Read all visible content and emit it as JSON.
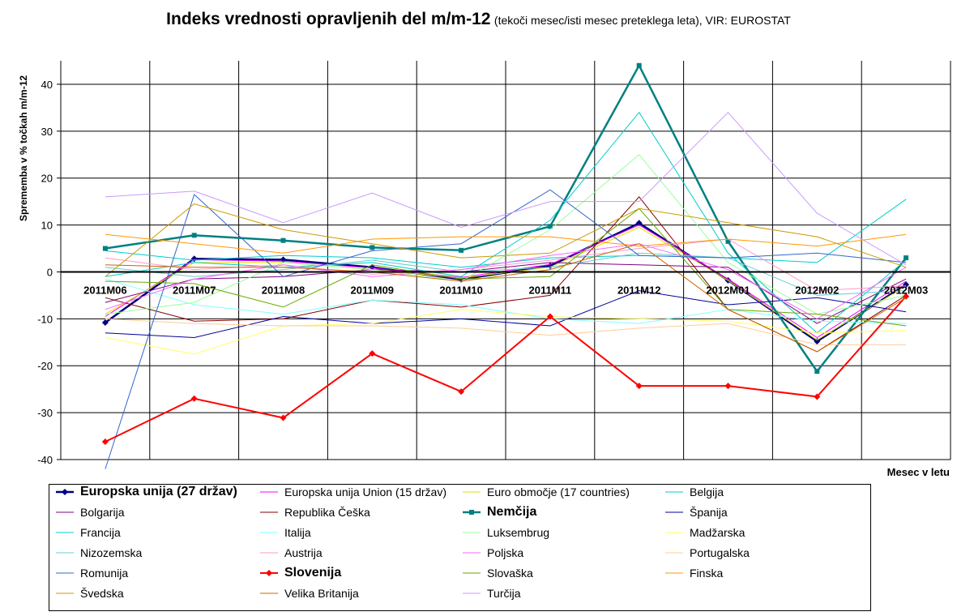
{
  "title": {
    "main": "Indeks vrednosti opravljenih del m/m-12",
    "sub": "(tekoči mesec/isti mesec preteklega leta), VIR: EUROSTAT"
  },
  "chart_data": {
    "type": "line",
    "categories": [
      "2011M06",
      "2011M07",
      "2011M08",
      "2011M09",
      "2011M10",
      "2011M11",
      "2011M12",
      "2012M01",
      "2012M02",
      "2012M03"
    ],
    "ylabel": "Sprememba v % točkah m/m-12",
    "xlabel": "Mesec v letu",
    "ylim": [
      -40,
      45
    ],
    "yticks": [
      -40,
      -30,
      -20,
      -10,
      0,
      10,
      20,
      30,
      40
    ],
    "grid": true,
    "legend_position": "bottom",
    "series": [
      {
        "name": "Europska unija (27 držav)",
        "color": "#000080",
        "width": 2.5,
        "marker": "diamond",
        "bold": true,
        "values": [
          -10.8,
          2.8,
          2.6,
          1.0,
          -1.6,
          1.3,
          10.4,
          -1.8,
          -14.8,
          -2.7
        ]
      },
      {
        "name": "Europska  unija Union (15 držav)",
        "color": "#ff00ff",
        "width": 1,
        "values": [
          -9.5,
          2.6,
          2.3,
          0.8,
          -1.2,
          1.6,
          10.0,
          -1.5,
          -14.0,
          -2.0
        ]
      },
      {
        "name": "Euro območje (17 countries)",
        "color": "#e0e000",
        "width": 1,
        "values": [
          -9.0,
          2.0,
          2.0,
          0.5,
          -1.3,
          1.0,
          9.5,
          -1.8,
          -14.5,
          -3.0
        ]
      },
      {
        "name": "Belgija",
        "color": "#00cccc",
        "width": 1,
        "values": [
          4.5,
          2.5,
          3.5,
          3.0,
          1.0,
          3.0,
          3.5,
          3.0,
          2.0,
          15.5
        ]
      },
      {
        "name": "Bolgarija",
        "color": "#800080",
        "width": 1,
        "values": [
          -6.5,
          -1.5,
          -1.0,
          0.5,
          0.0,
          2.0,
          1.5,
          1.0,
          -11.0,
          -1.5
        ]
      },
      {
        "name": "Republika Češka",
        "color": "#800000",
        "width": 1,
        "values": [
          -5.5,
          -10.5,
          -10.0,
          -6.0,
          -7.5,
          -5.0,
          16.0,
          -8.0,
          -17.0,
          -5.0
        ]
      },
      {
        "name": "Nemčija",
        "color": "#008080",
        "width": 2.5,
        "marker": "square",
        "bold": true,
        "values": [
          5.0,
          7.8,
          6.7,
          5.2,
          4.6,
          9.7,
          44.0,
          6.5,
          -21.2,
          3.0
        ]
      },
      {
        "name": "Španija",
        "color": "#000099",
        "width": 1,
        "values": [
          -13.0,
          -14.0,
          -9.5,
          -11.0,
          -10.0,
          -11.5,
          -4.0,
          -7.0,
          -5.5,
          -8.5
        ]
      },
      {
        "name": "Francija",
        "color": "#00cccc",
        "width": 1,
        "values": [
          -1.0,
          2.0,
          1.0,
          2.0,
          -1.0,
          11.0,
          34.0,
          4.0,
          -13.0,
          2.5
        ]
      },
      {
        "name": "Italija",
        "color": "#80ffff",
        "width": 1,
        "values": [
          -1.5,
          -7.0,
          -9.0,
          -6.0,
          -7.0,
          -10.0,
          -11.0,
          -8.0,
          -10.5,
          -11.0
        ]
      },
      {
        "name": "Luksembrug",
        "color": "#99ff99",
        "width": 1,
        "values": [
          -9.0,
          -6.5,
          2.0,
          0.5,
          -2.0,
          9.0,
          25.0,
          2.0,
          -9.0,
          -5.0
        ]
      },
      {
        "name": "Madžarska",
        "color": "#ffff66",
        "width": 1,
        "values": [
          -14.0,
          -17.5,
          -11.5,
          -11.0,
          -8.0,
          -9.5,
          -10.0,
          -10.5,
          -13.0,
          -12.5
        ]
      },
      {
        "name": "Nizozemska",
        "color": "#66cccc",
        "width": 1,
        "values": [
          1.0,
          -1.0,
          0.5,
          2.5,
          0.0,
          1.0,
          4.0,
          3.0,
          -5.0,
          -4.0
        ]
      },
      {
        "name": "Austrija",
        "color": "#ff99cc",
        "width": 1,
        "values": [
          3.0,
          0.5,
          1.5,
          -0.5,
          0.5,
          2.5,
          5.0,
          7.0,
          -4.0,
          -3.0
        ]
      },
      {
        "name": "Poljska",
        "color": "#ff66ff",
        "width": 1,
        "values": [
          -8.0,
          -1.5,
          1.5,
          -1.0,
          0.5,
          3.5,
          6.0,
          0.5,
          -10.0,
          1.0
        ]
      },
      {
        "name": "Portugalska",
        "color": "#ffcc99",
        "width": 1,
        "values": [
          -10.0,
          -11.0,
          -11.5,
          -11.5,
          -12.0,
          -13.5,
          -12.0,
          -11.0,
          -15.5,
          -15.5
        ]
      },
      {
        "name": "Romunija",
        "color": "#3366cc",
        "width": 1,
        "values": [
          -42.0,
          16.5,
          -1.0,
          4.5,
          6.0,
          17.5,
          3.5,
          3.0,
          4.0,
          2.0
        ]
      },
      {
        "name": "Slovenija",
        "color": "#ff0000",
        "width": 2,
        "marker": "diamond",
        "bold": true,
        "values": [
          -36.2,
          -27.0,
          -31.1,
          -17.4,
          -25.5,
          -9.5,
          -24.3,
          -24.3,
          -26.6,
          -5.2
        ]
      },
      {
        "name": "Slovaška",
        "color": "#66aa00",
        "width": 1,
        "values": [
          -2.0,
          -2.5,
          -7.5,
          1.5,
          -1.5,
          -1.0,
          13.5,
          -8.0,
          -9.0,
          -11.5
        ]
      },
      {
        "name": "Finska",
        "color": "#ff9900",
        "width": 1,
        "values": [
          8.0,
          6.0,
          4.0,
          7.0,
          7.5,
          7.5,
          5.5,
          7.0,
          5.5,
          8.0
        ]
      },
      {
        "name": "Švedska",
        "color": "#cc9900",
        "width": 1,
        "values": [
          -1.0,
          14.5,
          9.0,
          6.0,
          3.0,
          4.0,
          13.5,
          10.5,
          7.5,
          1.0
        ]
      },
      {
        "name": "Velika Britanija",
        "color": "#cc6600",
        "width": 1,
        "values": [
          1.5,
          1.0,
          1.0,
          0.0,
          -2.0,
          0.5,
          6.0,
          -8.0,
          -17.0,
          -5.5
        ]
      },
      {
        "name": "Turčija",
        "color": "#cc99ff",
        "width": 1,
        "values": [
          16.0,
          17.2,
          10.5,
          16.8,
          9.5,
          15.0,
          15.0,
          34.0,
          12.5,
          1.5
        ]
      }
    ]
  }
}
